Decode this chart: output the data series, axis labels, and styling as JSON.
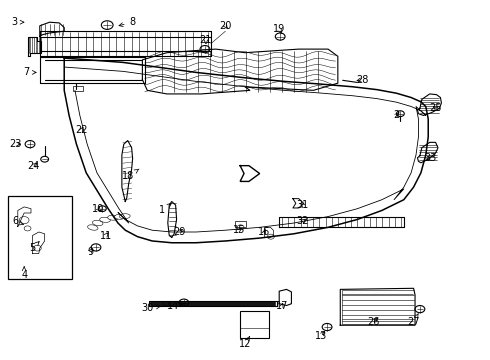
{
  "bg_color": "#ffffff",
  "fig_width": 4.9,
  "fig_height": 3.6,
  "dpi": 100,
  "lc": "#000000",
  "lw_main": 0.8,
  "lw_thin": 0.4,
  "fontsize": 7.0,
  "labels": {
    "1": [
      0.33,
      0.415,
      0.355,
      0.44
    ],
    "2": [
      0.81,
      0.68,
      0.82,
      0.695
    ],
    "3": [
      0.028,
      0.94,
      0.055,
      0.94
    ],
    "4": [
      0.048,
      0.235,
      0.048,
      0.26
    ],
    "5": [
      0.065,
      0.31,
      0.08,
      0.33
    ],
    "6": [
      0.03,
      0.385,
      0.048,
      0.375
    ],
    "7": [
      0.052,
      0.8,
      0.08,
      0.8
    ],
    "8": [
      0.27,
      0.94,
      0.235,
      0.928
    ],
    "9": [
      0.183,
      0.3,
      0.193,
      0.315
    ],
    "10": [
      0.2,
      0.42,
      0.21,
      0.408
    ],
    "11": [
      0.215,
      0.345,
      0.225,
      0.36
    ],
    "12": [
      0.5,
      0.042,
      0.51,
      0.065
    ],
    "13": [
      0.655,
      0.065,
      0.668,
      0.085
    ],
    "14": [
      0.352,
      0.148,
      0.375,
      0.155
    ],
    "15": [
      0.488,
      0.36,
      0.498,
      0.37
    ],
    "16": [
      0.54,
      0.355,
      0.545,
      0.37
    ],
    "17": [
      0.575,
      0.148,
      0.58,
      0.165
    ],
    "18": [
      0.26,
      0.51,
      0.288,
      0.535
    ],
    "19": [
      0.57,
      0.92,
      0.578,
      0.9
    ],
    "20": [
      0.46,
      0.93,
      0.468,
      0.915
    ],
    "21": [
      0.42,
      0.89,
      0.42,
      0.87
    ],
    "22": [
      0.165,
      0.64,
      0.172,
      0.655
    ],
    "23": [
      0.03,
      0.6,
      0.048,
      0.6
    ],
    "24": [
      0.068,
      0.54,
      0.08,
      0.553
    ],
    "25": [
      0.89,
      0.7,
      0.88,
      0.71
    ],
    "26": [
      0.762,
      0.105,
      0.778,
      0.12
    ],
    "27": [
      0.845,
      0.105,
      0.855,
      0.128
    ],
    "28": [
      0.74,
      0.78,
      0.722,
      0.775
    ],
    "29": [
      0.365,
      0.355,
      0.378,
      0.368
    ],
    "30": [
      0.3,
      0.142,
      0.328,
      0.148
    ],
    "31": [
      0.618,
      0.43,
      0.608,
      0.44
    ],
    "32": [
      0.618,
      0.385,
      0.625,
      0.392
    ],
    "33": [
      0.88,
      0.56,
      0.87,
      0.558
    ]
  }
}
